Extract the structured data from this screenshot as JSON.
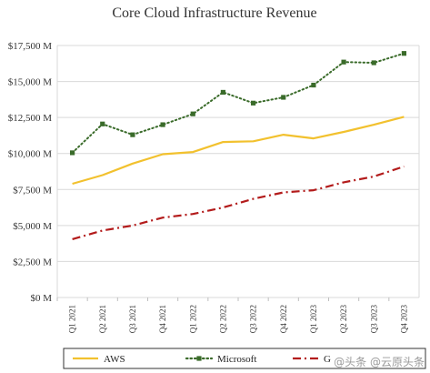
{
  "chart_data": {
    "type": "line",
    "title": "Core Cloud Infrastructure Revenue",
    "xlabel": "",
    "ylabel": "",
    "categories": [
      "Q1 2021",
      "Q2 2021",
      "Q3 2021",
      "Q4 2021",
      "Q1 2022",
      "Q2 2022",
      "Q3 2022",
      "Q4 2022",
      "Q1 2023",
      "Q2 2023",
      "Q3 2023",
      "Q4 2023"
    ],
    "ylim": [
      0,
      17500
    ],
    "yticks": [
      0,
      2500,
      5000,
      7500,
      10000,
      12500,
      15000,
      17500
    ],
    "ytick_labels": [
      "$0 M",
      "$2,500 M",
      "$5,000 M",
      "$7,500 M",
      "$10,000 M",
      "$12,500 M",
      "$15,000 M",
      "$17,500 M"
    ],
    "grid": true,
    "legend_position": "bottom",
    "series": [
      {
        "name": "AWS",
        "color": "#f2c12e",
        "style": "solid",
        "values": [
          7900,
          8500,
          9300,
          9950,
          10100,
          10800,
          10850,
          11300,
          11050,
          11500,
          12000,
          12550
        ]
      },
      {
        "name": "Microsoft",
        "color": "#3a6b2a",
        "style": "dotted-square",
        "values": [
          10050,
          12050,
          11300,
          12000,
          12750,
          14250,
          13500,
          13900,
          14750,
          16350,
          16300,
          16950
        ]
      },
      {
        "name": "Google",
        "color": "#b31b1b",
        "style": "dash-dot",
        "values": [
          4050,
          4650,
          5000,
          5550,
          5800,
          6250,
          6850,
          7300,
          7450,
          8000,
          8400,
          9100
        ]
      }
    ],
    "legend_labels": [
      "AWS",
      "Microsoft",
      "G"
    ]
  },
  "watermark": "@头条 @云原头条"
}
